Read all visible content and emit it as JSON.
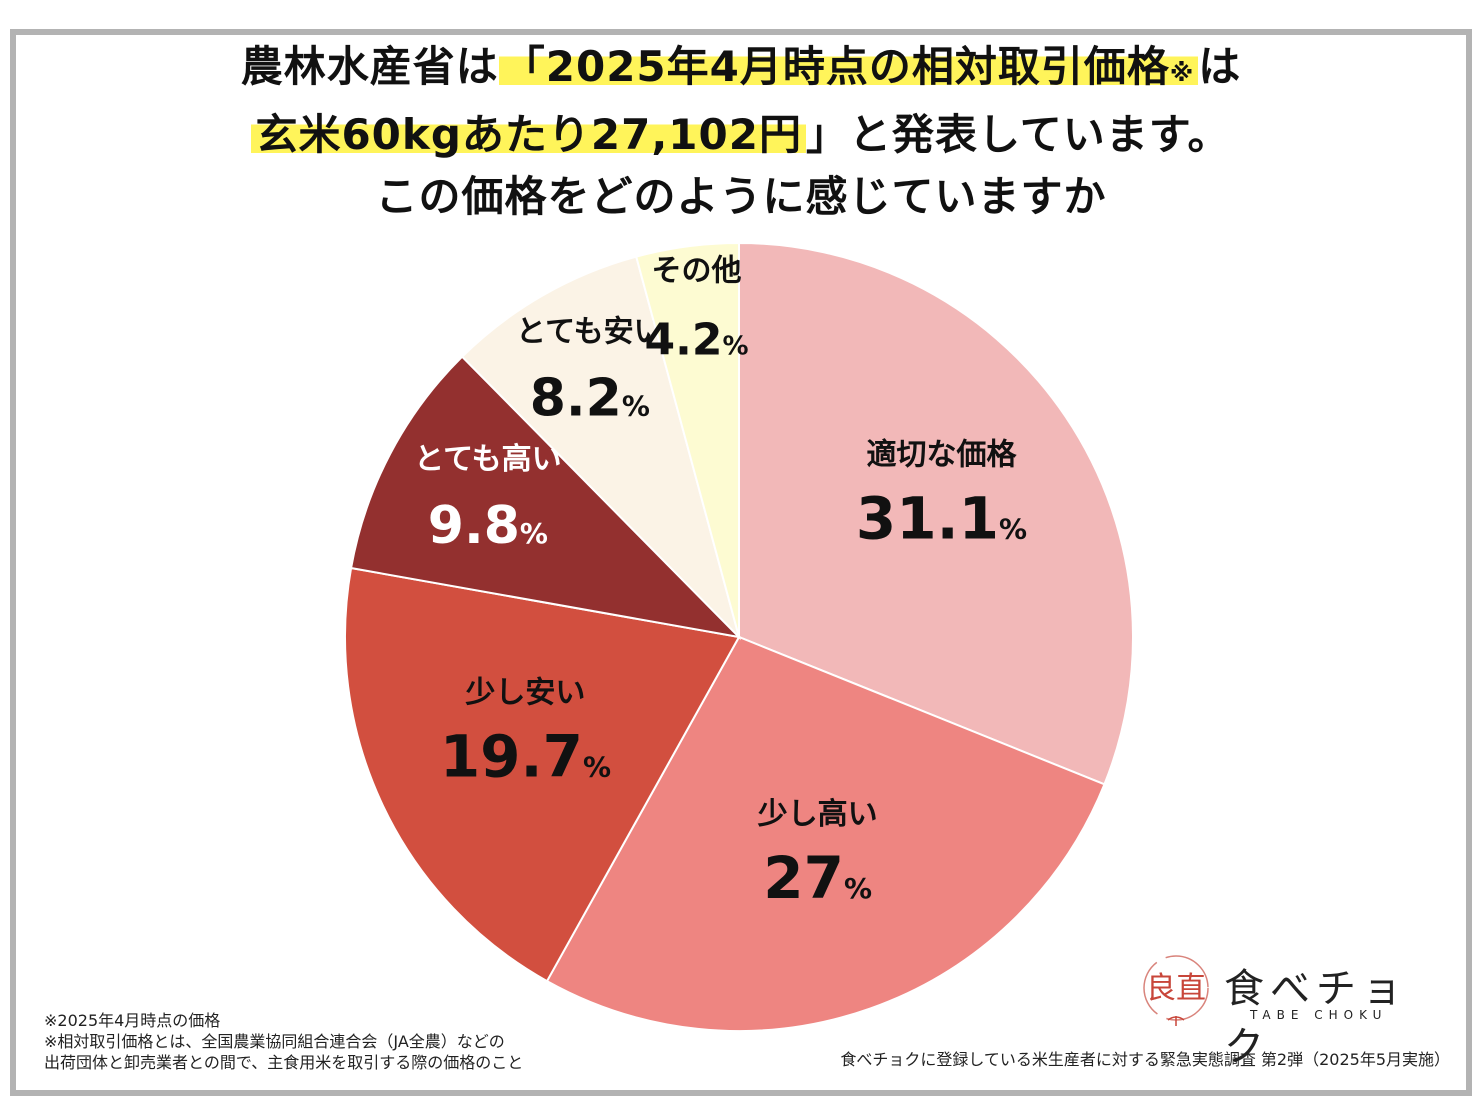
{
  "title": {
    "line1_a": "農林水産省は",
    "line1_b": "「2025年4月時点の相対取引価格",
    "line1_mark": "※",
    "line1_c": "は",
    "line2_a": "玄米60kgあたり27,102円",
    "line2_b": "」と発表しています。",
    "line3": "この価格をどのように感じていますか"
  },
  "chart_data": {
    "type": "pie",
    "start_angle_deg": 0,
    "direction": "clockwise",
    "slices": [
      {
        "label": "適切な価格",
        "value": 31.1,
        "display": "31.1",
        "unit": "%",
        "color": "#f2b8b8",
        "text_color": "#111111"
      },
      {
        "label": "少し高い",
        "value": 27,
        "display": "27",
        "unit": "%",
        "color": "#ee8581",
        "text_color": "#111111"
      },
      {
        "label": "少し安い",
        "value": 19.7,
        "display": "19.7",
        "unit": "%",
        "color": "#d24f3f",
        "text_color": "#111111"
      },
      {
        "label": "とても高い",
        "value": 9.8,
        "display": "9.8",
        "unit": "%",
        "color": "#93302f",
        "text_color": "#ffffff"
      },
      {
        "label": "とても安い",
        "value": 8.2,
        "display": "8.2",
        "unit": "%",
        "color": "#fbf3e6",
        "text_color": "#111111"
      },
      {
        "label": "その他",
        "value": 4.2,
        "display": "4.2",
        "unit": "%",
        "color": "#fdfbd2",
        "text_color": "#111111"
      }
    ]
  },
  "footnotes": {
    "line1": "※2025年4月時点の価格",
    "line2": "※相対取引価格とは、全国農業協同組合連合会（JA全農）などの",
    "line3": "出荷団体と卸売業者との間で、主食用米を取引する際の価格のこと"
  },
  "source": "食べチョクに登録している米生産者に対する緊急実態調査 第2弾（2025年5月実施）",
  "logo": {
    "mark": "良直",
    "name": "食べチョク",
    "sub": "TABE CHOKU"
  }
}
